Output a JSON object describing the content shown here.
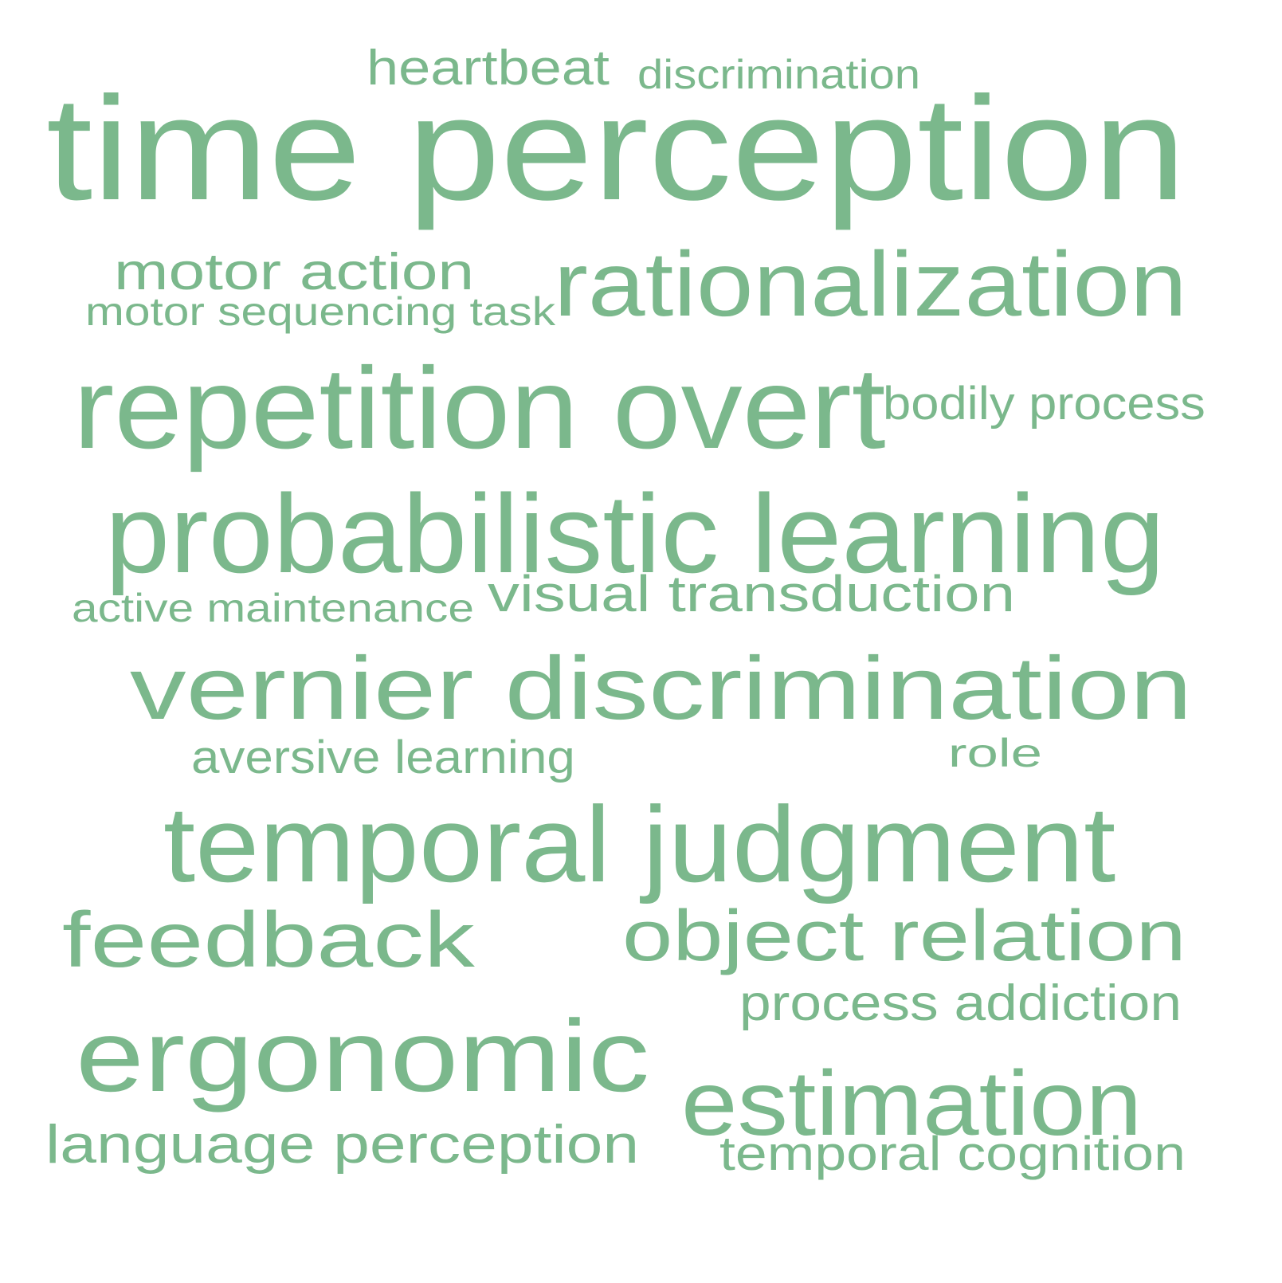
{
  "cloud": {
    "color": "#7bb88c",
    "background": "#ffffff",
    "words": [
      {
        "text": "heartbeat",
        "weight": 2
      },
      {
        "text": "discrimination",
        "weight": 2
      },
      {
        "text": "time perception",
        "weight": 5
      },
      {
        "text": "motor action",
        "weight": 2
      },
      {
        "text": "rationalization",
        "weight": 4
      },
      {
        "text": "motor sequencing task",
        "weight": 1
      },
      {
        "text": "repetition overt",
        "weight": 4
      },
      {
        "text": "bodily process",
        "weight": 2
      },
      {
        "text": "probabilistic learning",
        "weight": 4
      },
      {
        "text": "active maintenance",
        "weight": 1
      },
      {
        "text": "visual transduction",
        "weight": 2
      },
      {
        "text": "vernier discrimination",
        "weight": 4
      },
      {
        "text": "aversive learning",
        "weight": 1
      },
      {
        "text": "role",
        "weight": 1
      },
      {
        "text": "temporal judgment",
        "weight": 4
      },
      {
        "text": "feedback",
        "weight": 3
      },
      {
        "text": "object relation",
        "weight": 3
      },
      {
        "text": "process addiction",
        "weight": 2
      },
      {
        "text": "ergonomic",
        "weight": 4
      },
      {
        "text": "estimation",
        "weight": 4
      },
      {
        "text": "language perception",
        "weight": 2
      },
      {
        "text": "temporal cognition",
        "weight": 2
      }
    ]
  }
}
